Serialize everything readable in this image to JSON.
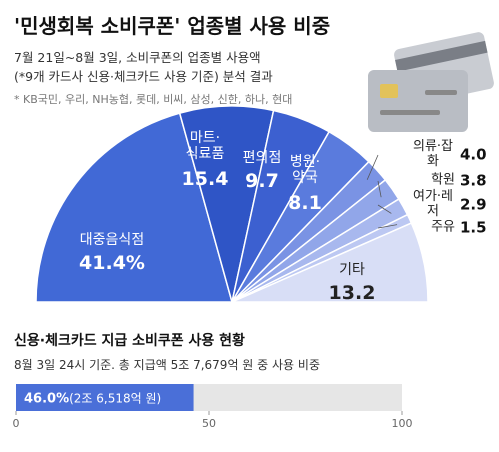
{
  "chart_data": [
    {
      "type": "pie",
      "shape": "semicircle",
      "title": "'민생회복 소비쿠폰' 업종별 사용 비중",
      "subtitle": [
        "7월 21일~8월 3일, 소비쿠폰의 업종별 사용액",
        "(*9개 카드사 신용·체크카드 사용 기준) 분석 결과"
      ],
      "note": "* KB국민, 우리, NH농협, 롯데, 비씨, 삼성, 신한, 하나, 현대",
      "categories": [
        "대중음식점",
        "마트·\n식료품",
        "편의점",
        "병원·\n약국",
        "의류·잡화",
        "학원",
        "여가·레저",
        "주유",
        "기타"
      ],
      "values": [
        41.4,
        15.4,
        9.7,
        8.1,
        4.0,
        3.8,
        2.9,
        1.5,
        13.2
      ],
      "value_labels": [
        "41.4%",
        "15.4",
        "9.7",
        "8.1",
        "4.0",
        "3.8",
        "2.9",
        "1.5",
        "13.2"
      ],
      "colors": [
        "#4169d6",
        "#2f55c6",
        "#3c60d0",
        "#5a7bdd",
        "#7a93e4",
        "#91a6e9",
        "#a8b8ee",
        "#bcc8f2",
        "#d8def6"
      ]
    },
    {
      "type": "progress",
      "title": "신용·체크카드 지급 소비쿠폰 사용 현황",
      "subtitle": "8월 3일 24시 기준. 총 지급액 5조 7,679억 원 중 사용 비중",
      "values": [
        46.0
      ],
      "value_labels": [
        "46.0%"
      ],
      "annotation": "(2조 6,518억 원)",
      "color": "#4a6fd8",
      "track_color": "#e6e6e6",
      "xlim": [
        0,
        100
      ],
      "xticks": [
        0,
        50,
        100
      ]
    }
  ]
}
